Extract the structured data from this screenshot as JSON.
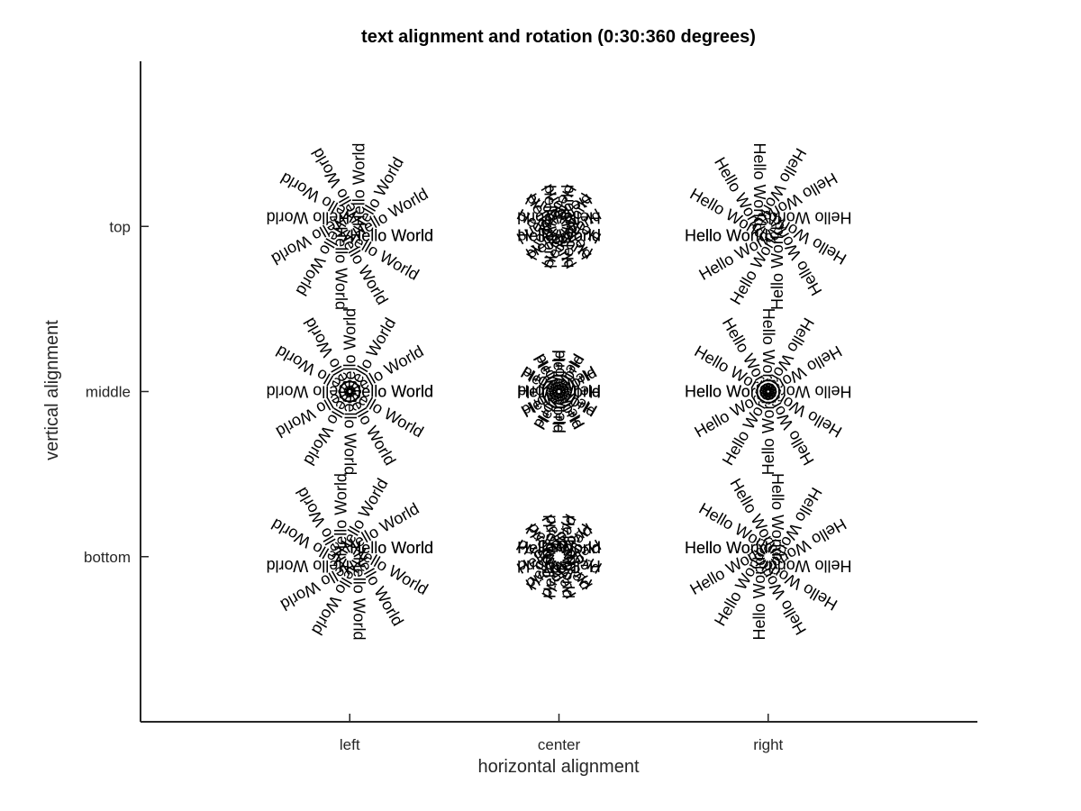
{
  "chart_data": {
    "type": "scatter",
    "title": "text alignment and rotation (0:30:360 degrees)",
    "xlabel": "horizontal alignment",
    "ylabel": "vertical alignment",
    "x_categories": [
      "left",
      "center",
      "right"
    ],
    "y_categories": [
      "bottom",
      "middle",
      "top"
    ],
    "xlim": [
      0,
      4
    ],
    "ylim": [
      0,
      4
    ],
    "sample_text": "Hello World",
    "rotation_start_deg": 0,
    "rotation_step_deg": 30,
    "rotation_end_deg": 360,
    "grid": false
  }
}
